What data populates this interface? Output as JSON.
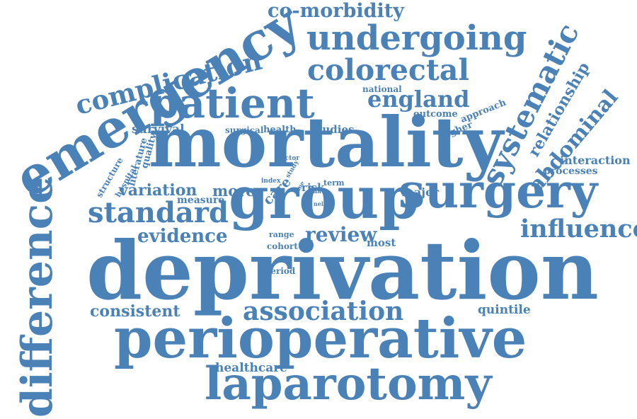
{
  "word_cloud": {
    "color": "#4a81b6",
    "background": "#ffffff",
    "words": {
      "co_morbidity": "co-morbidity",
      "complication": "complication",
      "emergency": "emergency",
      "undergoing": "undergoing",
      "colorectal": "colorectal",
      "patient": "patient",
      "national": "national",
      "england": "england",
      "systematic": "systematic",
      "relationship": "relationship",
      "abdominal": "abdominal",
      "outcome": "outcome",
      "approach": "approach",
      "higher": "higher",
      "survival": "survival",
      "surgical": "surgical",
      "health": "health",
      "studies": "studies",
      "mortality": "mortality",
      "quality": "quality",
      "literature": "literature",
      "structure": "structure",
      "hospital": "hospital",
      "factor": "factor",
      "study": "study",
      "interaction": "interaction",
      "processes": "processes",
      "variation": "variation",
      "more": "more",
      "care": "care",
      "index": "index",
      "time": "time",
      "area": "area",
      "risk": "risk",
      "term": "term",
      "data": "data",
      "nela": "nela",
      "major": "major",
      "measure": "measure",
      "standard": "standard",
      "group": "group",
      "surgery": "surgery",
      "difference": "difference",
      "evidence": "evidence",
      "range": "range",
      "review": "review",
      "influence": "influence",
      "cohort": "cohort",
      "most": "most",
      "deprivation": "deprivation",
      "period": "period",
      "consistent": "consistent",
      "association": "association",
      "quintile": "quintile",
      "perioperative": "perioperative",
      "healthcare": "healthcare",
      "laparotomy": "laparotomy"
    }
  }
}
